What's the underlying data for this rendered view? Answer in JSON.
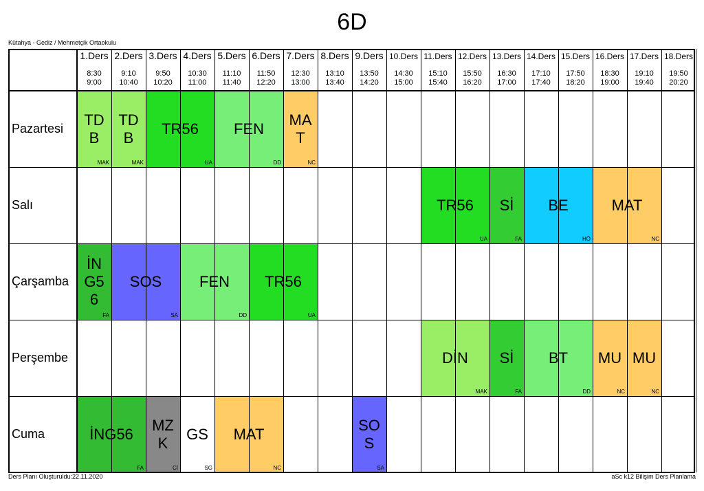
{
  "title": "6D",
  "school": "Kütahya - Gediz / Mehmetçik Ortaokulu",
  "footer_left": "Ders Planı Oluşturuldu:22.11.2020",
  "footer_right": "aSc k12 Bilişim Ders Planlama",
  "periods": [
    {
      "label": "1.Ders",
      "start": "8:30",
      "end": "9:00"
    },
    {
      "label": "2.Ders",
      "start": "9:10",
      "end": "10:40"
    },
    {
      "label": "3.Ders",
      "start": "9:50",
      "end": "10:20"
    },
    {
      "label": "4.Ders",
      "start": "10:30",
      "end": "11:00"
    },
    {
      "label": "5.Ders",
      "start": "11:10",
      "end": "11:40"
    },
    {
      "label": "6.Ders",
      "start": "11:50",
      "end": "12:20"
    },
    {
      "label": "7.Ders",
      "start": "12:30",
      "end": "13:00"
    },
    {
      "label": "8.Ders",
      "start": "13:10",
      "end": "13:40"
    },
    {
      "label": "9.Ders",
      "start": "13:50",
      "end": "14:20"
    },
    {
      "label": "10.Ders",
      "start": "14:30",
      "end": "15:00"
    },
    {
      "label": "11.Ders",
      "start": "15:10",
      "end": "15:40"
    },
    {
      "label": "12.Ders",
      "start": "15:50",
      "end": "16:20"
    },
    {
      "label": "13.Ders",
      "start": "16:30",
      "end": "17:00"
    },
    {
      "label": "14.Ders",
      "start": "17:10",
      "end": "17:40"
    },
    {
      "label": "15.Ders",
      "start": "17:50",
      "end": "18:20"
    },
    {
      "label": "16.Ders",
      "start": "18:30",
      "end": "19:00"
    },
    {
      "label": "17.Ders",
      "start": "19:10",
      "end": "19:40"
    },
    {
      "label": "18.Ders",
      "start": "19:50",
      "end": "20:20"
    }
  ],
  "days": [
    "Pazartesi",
    "Salı",
    "Çarşamba",
    "Perşembe",
    "Cuma"
  ],
  "lessons": [
    {
      "day": 0,
      "period": 1,
      "span": 1,
      "subject": "TD\nB",
      "teacher": "MAK",
      "color": "#99ee66"
    },
    {
      "day": 0,
      "period": 2,
      "span": 1,
      "subject": "TD\nB",
      "teacher": "MAK",
      "color": "#99ee66"
    },
    {
      "day": 0,
      "period": 3,
      "span": 2,
      "subject": "TR56",
      "teacher": "UA",
      "color": "#22dd22"
    },
    {
      "day": 0,
      "period": 5,
      "span": 2,
      "subject": "FEN",
      "teacher": "DD",
      "color": "#77ee77"
    },
    {
      "day": 0,
      "period": 7,
      "span": 1,
      "subject": "MA\nT",
      "teacher": "NC",
      "color": "#ffcc66"
    },
    {
      "day": 1,
      "period": 11,
      "span": 2,
      "subject": "TR56",
      "teacher": "UA",
      "color": "#22dd22"
    },
    {
      "day": 1,
      "period": 13,
      "span": 1,
      "subject": "Sİ",
      "teacher": "FA",
      "color": "#33cc33"
    },
    {
      "day": 1,
      "period": 14,
      "span": 2,
      "subject": "BE",
      "teacher": "HÖ",
      "color": "#11ccff"
    },
    {
      "day": 1,
      "period": 16,
      "span": 2,
      "subject": "MAT",
      "teacher": "NC",
      "color": "#ffcc66"
    },
    {
      "day": 2,
      "period": 1,
      "span": 1,
      "subject": "İN\nG5\n6",
      "teacher": "FA",
      "color": "#33bb33"
    },
    {
      "day": 2,
      "period": 2,
      "span": 2,
      "subject": "SOS",
      "teacher": "SA",
      "color": "#6666ff"
    },
    {
      "day": 2,
      "period": 4,
      "span": 2,
      "subject": "FEN",
      "teacher": "DD",
      "color": "#77ee77"
    },
    {
      "day": 2,
      "period": 6,
      "span": 2,
      "subject": "TR56",
      "teacher": "UA",
      "color": "#22dd22"
    },
    {
      "day": 3,
      "period": 11,
      "span": 2,
      "subject": "DİN",
      "teacher": "MAK",
      "color": "#99ee66"
    },
    {
      "day": 3,
      "period": 13,
      "span": 1,
      "subject": "Sİ",
      "teacher": "FA",
      "color": "#33cc33"
    },
    {
      "day": 3,
      "period": 14,
      "span": 2,
      "subject": "BT",
      "teacher": "DD",
      "color": "#77ee77"
    },
    {
      "day": 3,
      "period": 16,
      "span": 1,
      "subject": "MU",
      "teacher": "NC",
      "color": "#ffcc66"
    },
    {
      "day": 3,
      "period": 17,
      "span": 1,
      "subject": "MU",
      "teacher": "NC",
      "color": "#ffcc66"
    },
    {
      "day": 4,
      "period": 1,
      "span": 2,
      "subject": "İNG56",
      "teacher": "FA",
      "color": "#33bb33"
    },
    {
      "day": 4,
      "period": 3,
      "span": 1,
      "subject": "MZ\nK",
      "teacher": "Cİ",
      "color": "#888888"
    },
    {
      "day": 4,
      "period": 4,
      "span": 1,
      "subject": "GS",
      "teacher": "SG",
      "color": "#ffffff"
    },
    {
      "day": 4,
      "period": 5,
      "span": 2,
      "subject": "MAT",
      "teacher": "NC",
      "color": "#ffcc66"
    },
    {
      "day": 4,
      "period": 9,
      "span": 1,
      "subject": "SO\nS",
      "teacher": "SA",
      "color": "#6666ff"
    }
  ]
}
